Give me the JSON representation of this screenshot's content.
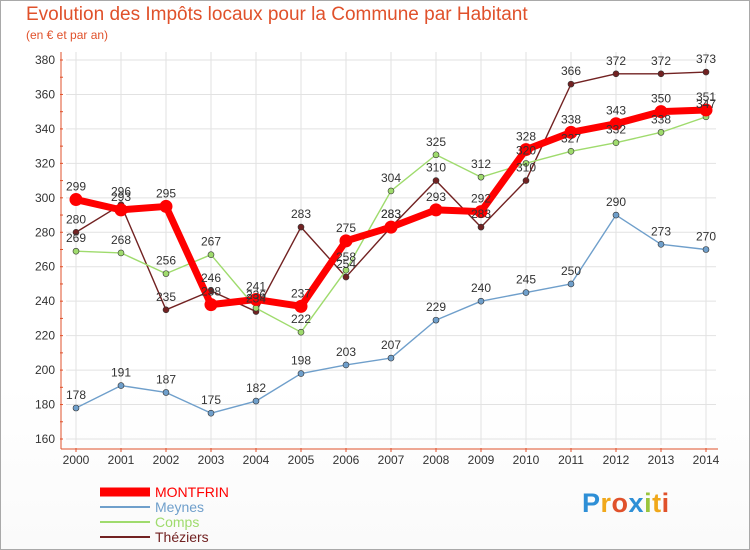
{
  "chart_data": {
    "type": "line",
    "title": "Evolution des Impôts locaux pour la Commune par Habitant",
    "subtitle": "(en € et par an)",
    "x": [
      "2000",
      "2001",
      "2002",
      "2003",
      "2004",
      "2005",
      "2006",
      "2007",
      "2008",
      "2009",
      "2010",
      "2011",
      "2012",
      "2013",
      "2014"
    ],
    "ylim": [
      160,
      380
    ],
    "yticks": [
      160,
      180,
      200,
      220,
      240,
      260,
      280,
      300,
      320,
      340,
      360,
      380
    ],
    "grid": true,
    "legend_position": "bottom-left",
    "series": [
      {
        "name": "Théziers",
        "color": "#722222",
        "values": [
          280,
          296,
          235,
          246,
          234,
          283,
          254,
          283,
          310,
          283,
          310,
          366,
          372,
          372,
          373
        ],
        "labels": [
          "280",
          "296",
          "235",
          "246",
          "234",
          "283",
          "254",
          "283",
          "310",
          "283",
          "310",
          "366",
          "372",
          "372",
          "373"
        ]
      },
      {
        "name": "Comps",
        "color": "#9fdb6d",
        "values": [
          269,
          268,
          256,
          267,
          236,
          222,
          258,
          304,
          325,
          312,
          320,
          327,
          332,
          338,
          347
        ],
        "labels": [
          "269",
          "268",
          "256",
          "267",
          "236",
          "222",
          "258",
          "304",
          "325",
          "312",
          "320",
          "327",
          "332",
          "338",
          "347"
        ]
      },
      {
        "name": "Meynes",
        "color": "#6f9fcb",
        "values": [
          178,
          191,
          187,
          175,
          182,
          198,
          203,
          207,
          229,
          240,
          245,
          250,
          290,
          273,
          270
        ],
        "labels": [
          "178",
          "191",
          "187",
          "175",
          "182",
          "198",
          "203",
          "207",
          "229",
          "240",
          "245",
          "250",
          "290",
          "273",
          "270"
        ]
      },
      {
        "name": "MONTFRIN",
        "color": "#ff0000",
        "values": [
          299,
          293,
          295,
          238,
          241,
          237,
          275,
          283,
          293,
          292,
          328,
          338,
          343,
          350,
          351
        ],
        "labels": [
          "299",
          "293",
          "295",
          "238",
          "241",
          "237",
          "275",
          "283",
          "293",
          "292",
          "328",
          "338",
          "343",
          "350",
          "351"
        ]
      }
    ]
  },
  "logo": {
    "letters": [
      "P",
      "r",
      "o",
      "x",
      "i",
      "t",
      "i"
    ],
    "colors": [
      "#2e8fd6",
      "#f0a81b",
      "#e0512b",
      "#2e8fd6",
      "#9ac53d",
      "#f0a81b",
      "#e0512b"
    ]
  }
}
